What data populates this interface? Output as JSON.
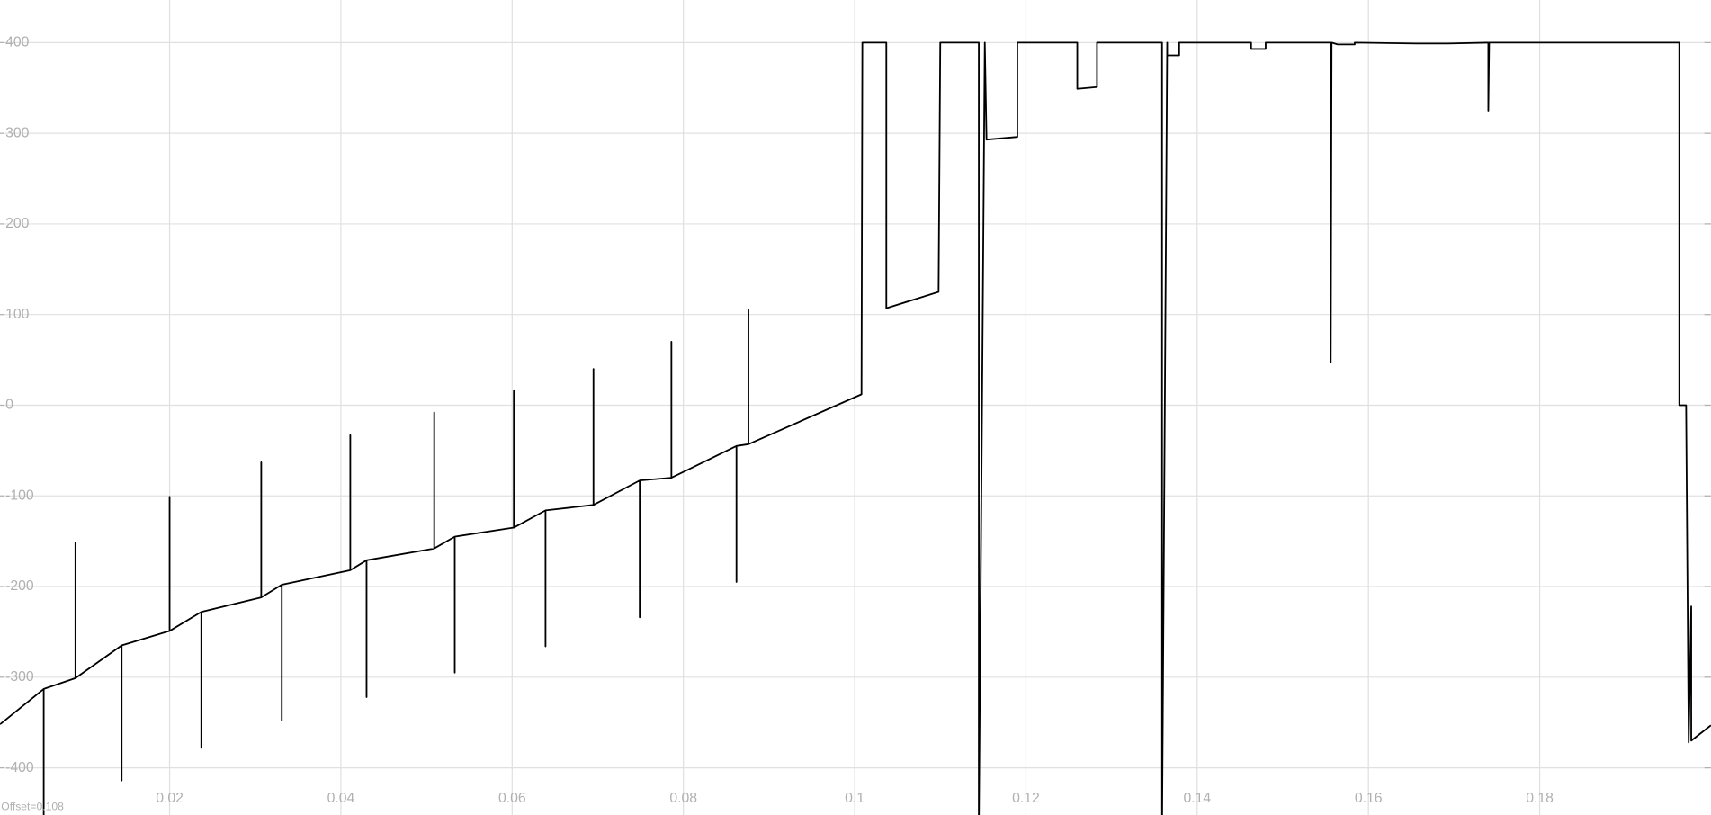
{
  "chart_data": {
    "type": "line",
    "annotation": "Offset=0.108",
    "xlim": [
      0.0002,
      0.2
    ],
    "ylim": [
      -452,
      447
    ],
    "xticks": [
      0.02,
      0.04,
      0.06,
      0.08,
      0.1,
      0.12,
      0.14,
      0.16,
      0.18
    ],
    "yticks": [
      400,
      300,
      200,
      100,
      0,
      -100,
      -200,
      -300,
      -400
    ],
    "grid": true,
    "x": [
      0.0002,
      0.0053,
      0.0053,
      0.0053,
      0.009,
      0.009,
      0.009,
      0.0144,
      0.0144,
      0.0144,
      0.02,
      0.02,
      0.02,
      0.0237,
      0.0237,
      0.0237,
      0.0307,
      0.0307,
      0.0307,
      0.0331,
      0.0331,
      0.0331,
      0.0411,
      0.0411,
      0.0411,
      0.043,
      0.043,
      0.043,
      0.0509,
      0.0509,
      0.0509,
      0.0533,
      0.0533,
      0.0533,
      0.0602,
      0.0602,
      0.0602,
      0.0639,
      0.0639,
      0.0639,
      0.0695,
      0.0695,
      0.0695,
      0.0749,
      0.0749,
      0.0749,
      0.0786,
      0.0786,
      0.0786,
      0.0862,
      0.0862,
      0.0862,
      0.0876,
      0.0876,
      0.0876,
      0.1008,
      0.1009,
      0.1037,
      0.1037,
      0.1098,
      0.11,
      0.1145,
      0.1145,
      0.1152,
      0.1154,
      0.119,
      0.119,
      0.126,
      0.126,
      0.1283,
      0.1283,
      0.1359,
      0.1359,
      0.1365,
      0.1365,
      0.1379,
      0.1379,
      0.1463,
      0.1463,
      0.148,
      0.148,
      0.1556,
      0.1556,
      0.1557,
      0.1564,
      0.1584,
      0.1584,
      0.1656,
      0.1693,
      0.174,
      0.174,
      0.1741,
      0.1963,
      0.1963,
      0.1971,
      0.1974,
      0.1977,
      0.1977,
      0.2
    ],
    "series": [
      {
        "color": "#000000",
        "values": [
          -352,
          -313,
          -470,
          -313,
          -301,
          -152,
          -301,
          -265,
          -414,
          -265,
          -249,
          -101,
          -249,
          -228,
          -378,
          -228,
          -212,
          -63,
          -212,
          -198,
          -348,
          -198,
          -182,
          -33,
          -182,
          -171,
          -322,
          -171,
          -158,
          -8,
          -158,
          -145,
          -295,
          -145,
          -135,
          16,
          -135,
          -116,
          -266,
          -116,
          -110,
          40,
          -110,
          -83,
          -234,
          -83,
          -80,
          70,
          -80,
          -45,
          -195,
          -45,
          -43,
          105,
          -43,
          12,
          400,
          400,
          107,
          125,
          400,
          400,
          -470,
          400,
          293,
          296,
          400,
          400,
          349,
          351,
          400,
          400,
          -470,
          400,
          386,
          386,
          400,
          400,
          393,
          393,
          400,
          400,
          47,
          400,
          398,
          398,
          400,
          399,
          399,
          400,
          325,
          400,
          400,
          0,
          0,
          -372,
          -222,
          -370,
          -353
        ]
      }
    ]
  }
}
